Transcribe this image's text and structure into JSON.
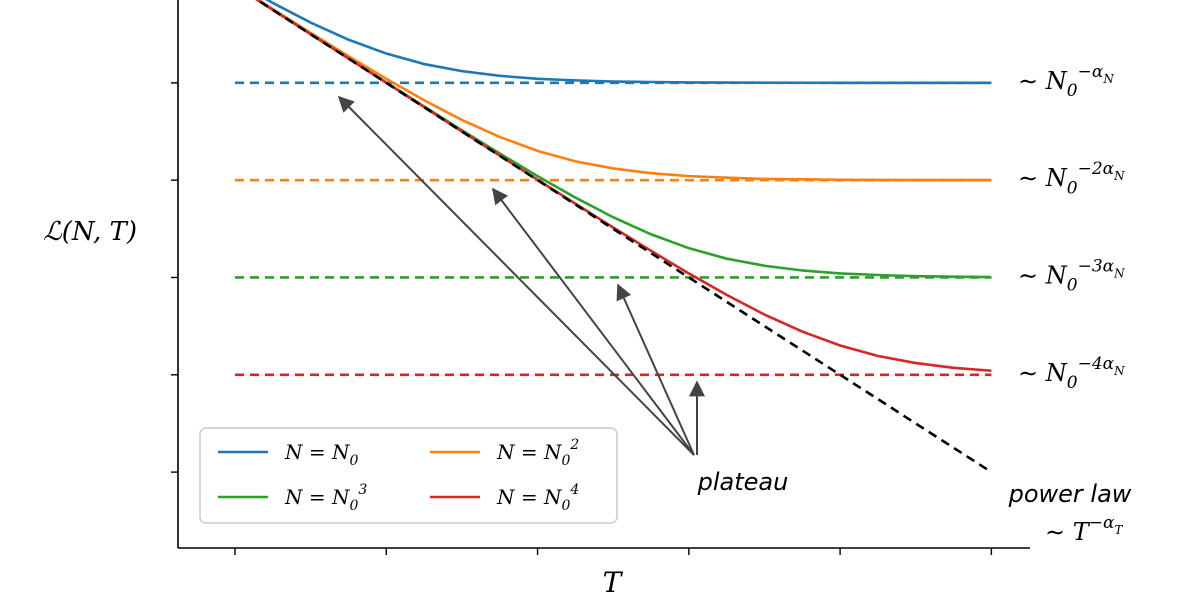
{
  "chart_data": {
    "type": "line",
    "xscale": "log",
    "yscale": "log",
    "grid": false,
    "tick_labels": false,
    "xlabel": "T",
    "ylabel": "ℒ(N, T)",
    "xlim": [
      0.42,
      180000
    ],
    "ylim": [
      1.66e-06,
      0.71
    ],
    "xticks": [
      1,
      10,
      100,
      1000,
      10000,
      100000
    ],
    "yticks": [
      0.1,
      0.01,
      0.001,
      0.0001,
      1e-05
    ],
    "legend": "lower left",
    "x": [
      1,
      1.78,
      3.16,
      5.62,
      10,
      17.8,
      31.6,
      56.2,
      100,
      178,
      316,
      562,
      1000,
      1780,
      3160,
      5620,
      10000,
      17800,
      31600,
      56200,
      100000
    ],
    "series": [
      {
        "name": "N = N",
        "name_sub": "0",
        "color": "#1f77b4",
        "plateau": 0.1,
        "plateau_label": {
          "text": "∼ N",
          "sub": "0",
          "sup": "−α",
          "sup_sub": "N"
        },
        "values": [
          1.1,
          0.662,
          0.416,
          0.278,
          0.2,
          0.156,
          0.132,
          0.118,
          0.11,
          0.106,
          0.103,
          0.102,
          0.101,
          0.1006,
          0.1003,
          0.1002,
          0.1001,
          0.1001,
          0.1,
          0.1,
          0.1
        ]
      },
      {
        "name": "N = N",
        "name_sub": "0",
        "name_sup": "2",
        "color": "#ff7f0e",
        "plateau": 0.01,
        "plateau_label": {
          "text": "∼ N",
          "sub": "0",
          "sup": "−2α",
          "sup_sub": "N"
        },
        "values": [
          1.01,
          0.572,
          0.326,
          0.188,
          0.11,
          0.0662,
          0.0416,
          0.0278,
          0.02,
          0.0156,
          0.0132,
          0.0118,
          0.011,
          0.0106,
          0.0103,
          0.0102,
          0.0101,
          0.01006,
          0.01003,
          0.01002,
          0.01001
        ]
      },
      {
        "name": "N = N",
        "name_sub": "0",
        "name_sup": "3",
        "color": "#2ca02c",
        "plateau": 0.001,
        "plateau_label": {
          "text": "∼ N",
          "sub": "0",
          "sup": "−3α",
          "sup_sub": "N"
        },
        "values": [
          1.001,
          0.563,
          0.317,
          0.179,
          0.101,
          0.0572,
          0.0326,
          0.0188,
          0.011,
          0.00662,
          0.00416,
          0.00278,
          0.002,
          0.00156,
          0.00132,
          0.00118,
          0.0011,
          0.00106,
          0.00103,
          0.00102,
          0.00101
        ]
      },
      {
        "name": "N = N",
        "name_sub": "0",
        "name_sup": "4",
        "color": "#d62728",
        "plateau": 0.0001,
        "plateau_label": {
          "text": "∼ N",
          "sub": "0",
          "sup": "−4α",
          "sup_sub": "N"
        },
        "values": [
          1.0001,
          0.5621,
          0.3161,
          0.1781,
          0.1001,
          0.0563,
          0.0317,
          0.0179,
          0.0101,
          0.00572,
          0.00326,
          0.00188,
          0.0011,
          0.000662,
          0.000416,
          0.000278,
          0.0002,
          0.000156,
          0.000132,
          0.000118,
          0.00011
        ]
      }
    ],
    "power_law": {
      "color": "#000000",
      "values": [
        1,
        0.562,
        0.316,
        0.178,
        0.1,
        0.0562,
        0.0316,
        0.0178,
        0.01,
        0.00562,
        0.00316,
        0.00178,
        0.001,
        0.000562,
        0.000316,
        0.000178,
        0.0001,
        5.62e-05,
        3.16e-05,
        1.78e-05,
        1e-05
      ]
    },
    "annotations": {
      "plateau": "plateau",
      "power_law": "power law",
      "power_law_exp": {
        "text": "∼ T",
        "sup": "−α",
        "sup_sub": "T"
      }
    }
  }
}
